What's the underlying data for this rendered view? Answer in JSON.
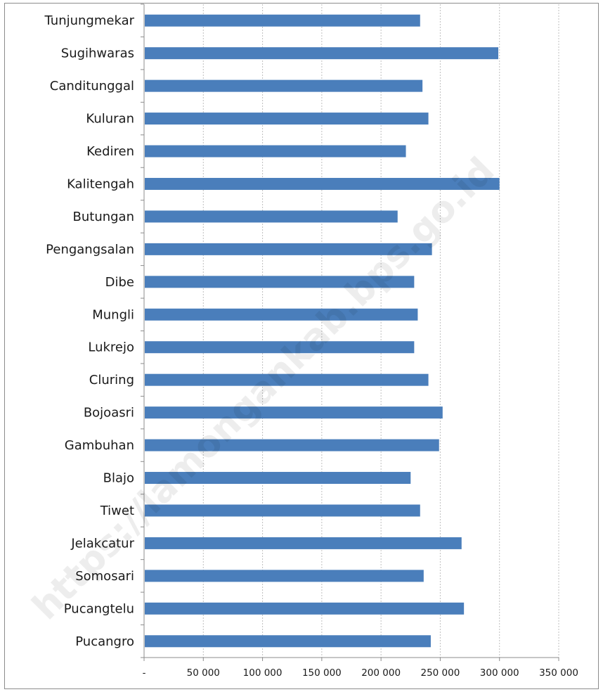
{
  "chart_data": {
    "type": "bar",
    "orientation": "horizontal",
    "categories": [
      "Tunjungmekar",
      "Sugihwaras",
      "Canditunggal",
      "Kuluran",
      "Kediren",
      "Kalitengah",
      "Butungan",
      "Pengangsalan",
      "Dibe",
      "Mungli",
      "Lukrejo",
      "Cluring",
      "Bojoasri",
      "Gambuhan",
      "Blajo",
      "Tiwet",
      "Jelakcatur",
      "Somosari",
      "Pucangtelu",
      "Pucangro"
    ],
    "series": [
      {
        "values": [
          233000,
          299000,
          235000,
          240000,
          221000,
          300000,
          214000,
          243000,
          228000,
          231000,
          228000,
          240000,
          252000,
          249000,
          225000,
          233000,
          268000,
          236000,
          270000,
          242000
        ]
      }
    ],
    "xlim": [
      0,
      350000
    ],
    "x_ticks": [
      0,
      50000,
      100000,
      150000,
      200000,
      250000,
      300000,
      350000
    ],
    "x_tick_labels": [
      "-",
      "50 000",
      "100 000",
      "150 000",
      "200 000",
      "250 000",
      "300 000",
      "350 000"
    ],
    "title": "",
    "xlabel": "",
    "ylabel": "",
    "grid": "vertical dashed",
    "legend": "none",
    "bar_color": "#4a7ebb",
    "axis_color": "#8c8c8c",
    "grid_color": "#bfbfbf"
  },
  "watermark": "https://lamongankab.bps.go.id"
}
